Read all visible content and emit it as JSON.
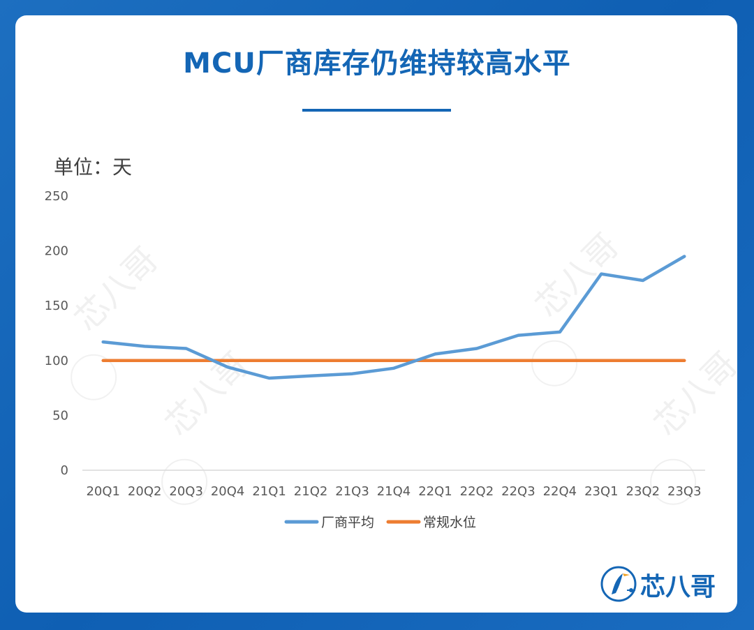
{
  "title": "MCU厂商库存仍维持较高水平",
  "unit": "单位：天",
  "brand": {
    "name": "芯八哥",
    "watermark": "芯八哥",
    "color": "#1466b5"
  },
  "colors": {
    "series1": "#5b9bd5",
    "series2": "#ed7d31",
    "axis": "#d9d9d9",
    "tick": "#595959"
  },
  "chart_data": {
    "type": "line",
    "categories": [
      "20Q1",
      "20Q2",
      "20Q3",
      "20Q4",
      "21Q1",
      "21Q2",
      "21Q3",
      "21Q4",
      "22Q1",
      "22Q2",
      "22Q3",
      "22Q4",
      "23Q1",
      "23Q2",
      "23Q3"
    ],
    "yticks": [
      0,
      50,
      100,
      150,
      200,
      250
    ],
    "ylim": [
      0,
      250
    ],
    "grid": false,
    "legend_position": "bottom",
    "series": [
      {
        "name": "厂商平均",
        "color": "#5b9bd5",
        "values": [
          117,
          113,
          111,
          94,
          84,
          86,
          88,
          93,
          106,
          111,
          123,
          126,
          179,
          173,
          195
        ]
      },
      {
        "name": "常规水位",
        "color": "#ed7d31",
        "values": [
          100,
          100,
          100,
          100,
          100,
          100,
          100,
          100,
          100,
          100,
          100,
          100,
          100,
          100,
          100
        ]
      }
    ]
  }
}
